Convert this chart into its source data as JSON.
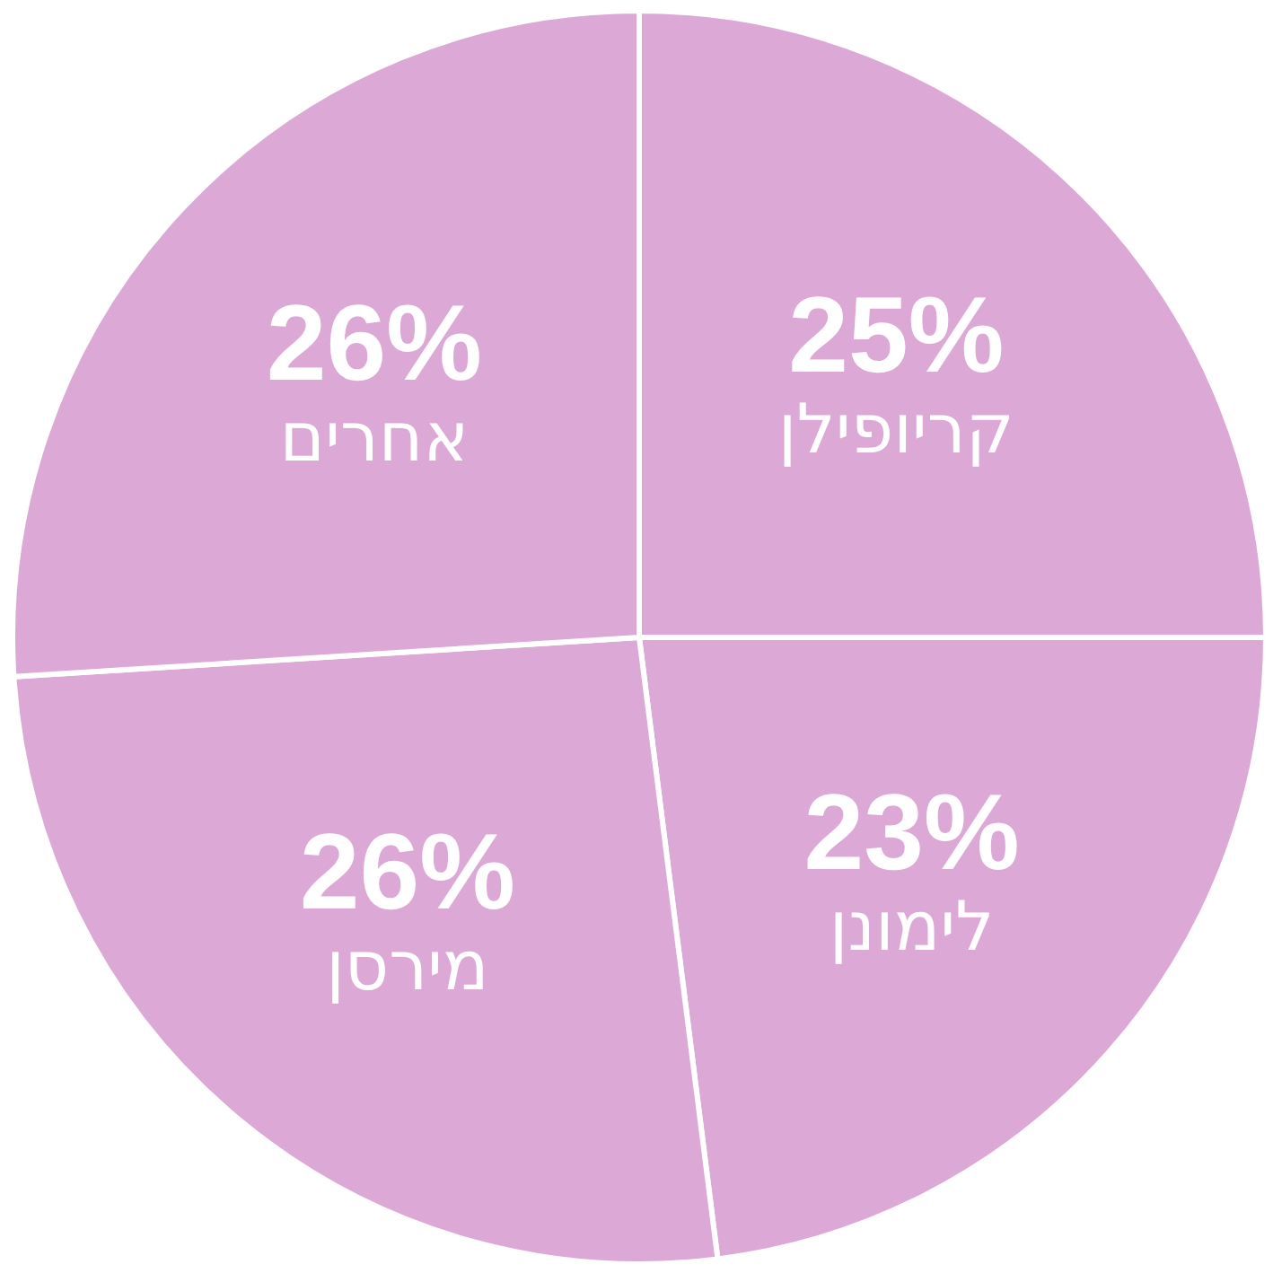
{
  "chart_data": {
    "type": "pie",
    "categories": [
      "קריופילן",
      "לימונן",
      "מירסן",
      "אחרים"
    ],
    "values": [
      25,
      23,
      26,
      26
    ],
    "value_labels": [
      "25%",
      "23%",
      "26%",
      "26%"
    ],
    "colors": [
      "#dca9d6",
      "#dca9d6",
      "#dca9d6",
      "#dca9d6"
    ]
  }
}
